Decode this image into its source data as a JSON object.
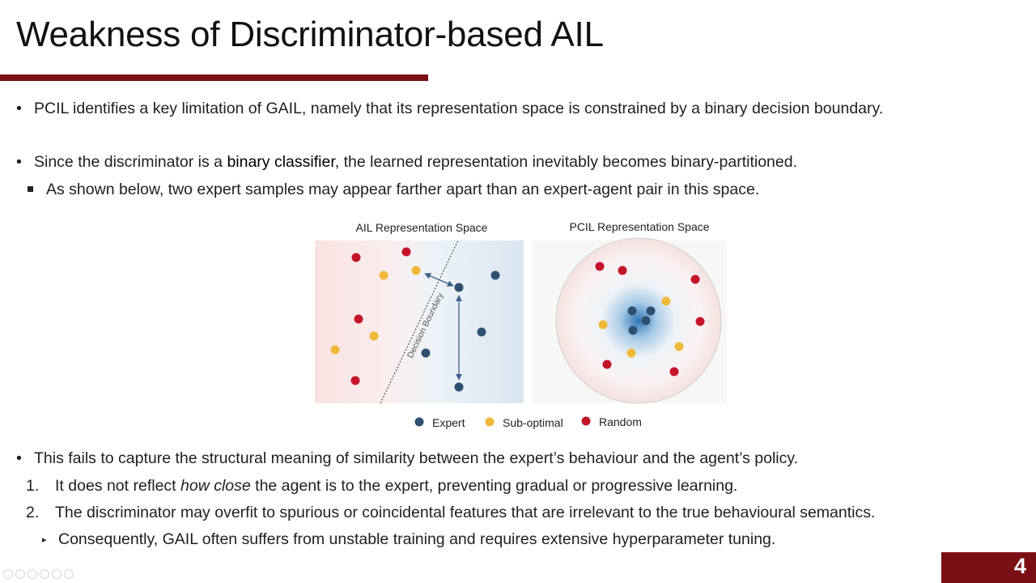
{
  "slide": {
    "title": "Weakness of Discriminator-based AIL",
    "page_number": "4",
    "accent_color": "#7a1016"
  },
  "bullets": {
    "b1": "PCIL identifies a key limitation of GAIL, namely that its representation space is constrained by a binary decision boundary.",
    "b2_pre": "Since the discriminator is a ",
    "b2_hl": "binary classifier",
    "b2_post": ", the learned representation inevitably becomes binary-partitioned.",
    "b2_sub": "As shown below, two expert samples may appear farther apart than an expert-agent pair in this space.",
    "b3": "This fails to capture the structural meaning of similarity between the expert’s behaviour and the agent’s policy.",
    "n1_num": "1.",
    "n1_pre": "It does not reflect ",
    "n1_em": "how close",
    "n1_post": " the agent is to the expert, preventing gradual or progressive learning.",
    "n2_num": "2.",
    "n2": "The discriminator may overfit to spurious or coincidental features that are irrelevant to the true behavioural semantics.",
    "n3": "Consequently, GAIL often suffers from unstable training and requires extensive hyperparameter tuning."
  },
  "figure": {
    "left_title": "AIL Representation Space",
    "right_title": "PCIL Representation Space",
    "boundary_label": "Decision Boundary",
    "legend": [
      {
        "label": "Expert",
        "color": "#2e4f6f"
      },
      {
        "label": "Sub-optimal",
        "color": "#f0b93a"
      },
      {
        "label": "Random",
        "color": "#c4142a"
      }
    ]
  },
  "icons": {
    "bullet": "bullet-dot",
    "sub_bullet": "square-bullet",
    "triangle_bullet": "triangle-bullet",
    "slide_controls": [
      "prev-icon",
      "next-icon",
      "pen-icon",
      "screen-icon",
      "zoom-icon",
      "more-icon"
    ]
  }
}
